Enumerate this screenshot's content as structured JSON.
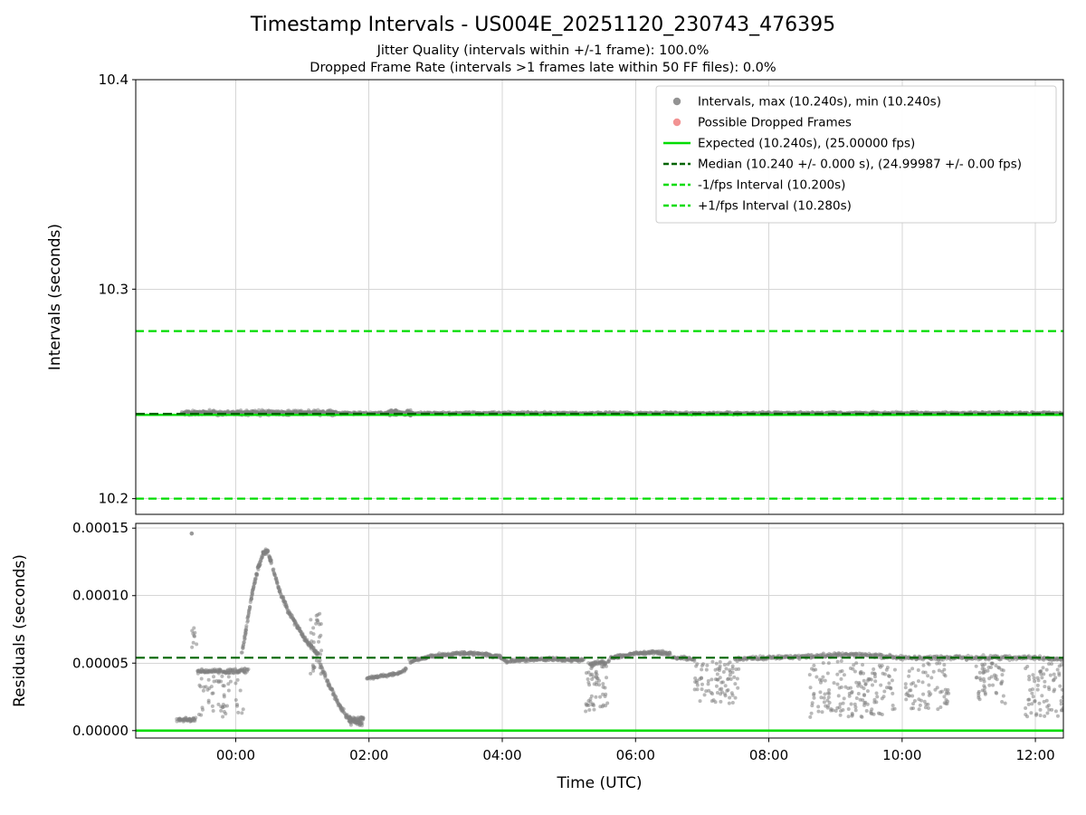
{
  "chart_data": {
    "type": "scatter",
    "title": "Timestamp Intervals - US004E_20251120_230743_476395",
    "subtitles": [
      "Jitter Quality (intervals within +/-1 frame): 100.0%",
      "Dropped Frame Rate (intervals >1 frames late within 50 FF files): 0.0%"
    ],
    "xlabel": "Time (UTC)",
    "xlim": [
      -1.5,
      12.42
    ],
    "x_ticks": [
      {
        "v": 0,
        "label": "00:00"
      },
      {
        "v": 2,
        "label": "02:00"
      },
      {
        "v": 4,
        "label": "04:00"
      },
      {
        "v": 6,
        "label": "06:00"
      },
      {
        "v": 8,
        "label": "08:00"
      },
      {
        "v": 10,
        "label": "10:00"
      },
      {
        "v": 12,
        "label": "12:00"
      }
    ],
    "colors": {
      "scatter": "#808080",
      "dropped": "#f08080",
      "bright_green": "#00dc00",
      "dark_green": "#006400",
      "grid": "#d6d6d6"
    },
    "legend": {
      "items": [
        {
          "marker": "dot",
          "color": "#808080",
          "dash": null,
          "label": "Intervals, max (10.240s), min (10.240s)"
        },
        {
          "marker": "dot",
          "color": "#f08080",
          "dash": null,
          "label": "Possible Dropped Frames"
        },
        {
          "marker": "line",
          "color": "#00dc00",
          "dash": null,
          "label": "Expected (10.240s), (25.00000 fps)"
        },
        {
          "marker": "line",
          "color": "#006400",
          "dash": [
            6,
            3
          ],
          "label": "Median (10.240 +/- 0.000 s), (24.99987 +/- 0.00 fps)"
        },
        {
          "marker": "line",
          "color": "#00dc00",
          "dash": [
            6,
            3
          ],
          "label": "-1/fps Interval (10.200s)"
        },
        {
          "marker": "line",
          "color": "#00dc00",
          "dash": [
            6,
            3
          ],
          "label": "+1/fps Interval (10.280s)"
        }
      ]
    },
    "panels": [
      {
        "name": "intervals",
        "ylabel": "Intervals (seconds)",
        "ylim": [
          10.1925,
          10.4
        ],
        "y_ticks": [
          {
            "v": 10.2,
            "label": "10.2"
          },
          {
            "v": 10.3,
            "label": "10.3"
          },
          {
            "v": 10.4,
            "label": "10.4"
          }
        ],
        "lines": [
          {
            "name": "minus-1fps-line",
            "y": 10.2,
            "color": "bright_green",
            "dash": [
              9,
              5
            ],
            "width": 2.2
          },
          {
            "name": "plus-1fps-line",
            "y": 10.28,
            "color": "bright_green",
            "dash": [
              9,
              5
            ],
            "width": 2.2
          },
          {
            "name": "expected-line",
            "y": 10.24,
            "color": "bright_green",
            "dash": null,
            "width": 2.6
          },
          {
            "name": "median-line",
            "y": 10.2405,
            "color": "dark_green",
            "dash": [
              10,
              5
            ],
            "width": 2.2
          }
        ],
        "scatter": [
          {
            "kind": "path",
            "pts": [
              [
                -0.82,
                10.2408
              ],
              [
                12.42,
                10.2408
              ]
            ],
            "jy": 0.00055,
            "n": 1500
          },
          {
            "kind": "path",
            "pts": [
              [
                -0.78,
                10.241
              ],
              [
                1.5,
                10.241
              ]
            ],
            "jy": 0.0011,
            "n": 420
          },
          {
            "kind": "cloud",
            "x0": 2.25,
            "x1": 2.65,
            "y0": 10.2396,
            "y1": 10.2424,
            "n": 60
          }
        ]
      },
      {
        "name": "residuals",
        "ylabel": "Residuals (seconds)",
        "ylim": [
          -5.5e-06,
          0.0001535
        ],
        "y_ticks": [
          {
            "v": 0,
            "label": "0.00000"
          },
          {
            "v": 5e-05,
            "label": "0.00005"
          },
          {
            "v": 0.0001,
            "label": "0.00010"
          },
          {
            "v": 0.00015,
            "label": "0.00015"
          }
        ],
        "lines": [
          {
            "name": "zero-line",
            "y": 0,
            "color": "bright_green",
            "dash": null,
            "width": 2.6
          },
          {
            "name": "median-residual-line",
            "y": 5.4e-05,
            "color": "dark_green",
            "dash": [
              10,
              5
            ],
            "width": 2.2
          }
        ],
        "scatter": [
          {
            "kind": "path",
            "pts": [
              [
                -0.88,
                8e-06
              ],
              [
                -0.6,
                8e-06
              ]
            ],
            "jy": 1.2e-06,
            "n": 45
          },
          {
            "kind": "cloud",
            "x0": -0.68,
            "x1": -0.57,
            "y0": 6e-05,
            "y1": 8.2e-05,
            "n": 9
          },
          {
            "kind": "point",
            "x": -0.66,
            "y": 0.000146
          },
          {
            "kind": "path",
            "pts": [
              [
                -0.58,
                4.4e-05
              ],
              [
                0.18,
                4.4e-05
              ]
            ],
            "jy": 1.8e-06,
            "n": 110
          },
          {
            "kind": "cloud",
            "x0": -0.55,
            "x1": 0.12,
            "y0": 1e-05,
            "y1": 4.1e-05,
            "n": 55
          },
          {
            "kind": "path",
            "pts": [
              [
                0.1,
                5.8e-05
              ],
              [
                0.18,
                8.3e-05
              ],
              [
                0.26,
                0.000105
              ],
              [
                0.34,
                0.000121
              ],
              [
                0.42,
                0.000133
              ],
              [
                0.48,
                0.000132
              ],
              [
                0.54,
                0.000124
              ]
            ],
            "jy": 2e-06,
            "n": 130
          },
          {
            "kind": "path",
            "pts": [
              [
                0.56,
                0.00012
              ],
              [
                0.66,
                0.000103
              ],
              [
                0.78,
                9e-05
              ],
              [
                0.9,
                7.9e-05
              ],
              [
                1.02,
                6.9e-05
              ],
              [
                1.14,
                6.2e-05
              ],
              [
                1.24,
                5.7e-05
              ]
            ],
            "jy": 1.8e-06,
            "n": 150
          },
          {
            "kind": "cloud",
            "x0": 1.12,
            "x1": 1.3,
            "y0": 4.2e-05,
            "y1": 8.7e-05,
            "n": 38
          },
          {
            "kind": "path",
            "pts": [
              [
                1.28,
                4.8e-05
              ],
              [
                1.4,
                3.4e-05
              ],
              [
                1.52,
                2.2e-05
              ],
              [
                1.64,
                1.2e-05
              ],
              [
                1.76,
                7e-06
              ],
              [
                1.9,
                5e-06
              ]
            ],
            "jy": 2e-06,
            "n": 120
          },
          {
            "kind": "cloud",
            "x0": 1.7,
            "x1": 1.93,
            "y0": 4e-06,
            "y1": 1e-05,
            "n": 45
          },
          {
            "kind": "path",
            "pts": [
              [
                1.97,
                3.9e-05
              ],
              [
                2.2,
                4.05e-05
              ],
              [
                2.45,
                4.25e-05
              ],
              [
                2.56,
                4.6e-05
              ]
            ],
            "jy": 1.2e-06,
            "n": 85
          },
          {
            "kind": "path",
            "pts": [
              [
                2.62,
                5.1e-05
              ],
              [
                2.9,
                5.5e-05
              ],
              [
                3.3,
                5.7e-05
              ],
              [
                3.7,
                5.7e-05
              ],
              [
                3.95,
                5.5e-05
              ],
              [
                4.08,
                5.1e-05
              ]
            ],
            "jy": 1.2e-06,
            "n": 230
          },
          {
            "kind": "path",
            "pts": [
              [
                4.12,
                5.2e-05
              ],
              [
                4.7,
                5.3e-05
              ],
              [
                5.22,
                5.2e-05
              ]
            ],
            "jy": 1.2e-06,
            "n": 160
          },
          {
            "kind": "cloud",
            "x0": 5.25,
            "x1": 5.58,
            "y0": 1.2e-05,
            "y1": 5e-05,
            "n": 60
          },
          {
            "kind": "path",
            "pts": [
              [
                5.3,
                5e-05
              ],
              [
                5.6,
                5.1e-05
              ]
            ],
            "jy": 1.5e-06,
            "n": 35
          },
          {
            "kind": "path",
            "pts": [
              [
                5.62,
                5.4e-05
              ],
              [
                6.0,
                5.7e-05
              ],
              [
                6.3,
                5.8e-05
              ],
              [
                6.52,
                5.7e-05
              ]
            ],
            "jy": 1.3e-06,
            "n": 150
          },
          {
            "kind": "path",
            "pts": [
              [
                6.55,
                5.4e-05
              ],
              [
                6.88,
                5.3e-05
              ]
            ],
            "jy": 1.3e-06,
            "n": 40
          },
          {
            "kind": "cloud",
            "x0": 6.88,
            "x1": 7.55,
            "y0": 2e-05,
            "y1": 5.2e-05,
            "n": 85
          },
          {
            "kind": "path",
            "pts": [
              [
                7.5,
                5.3e-05
              ],
              [
                8.1,
                5.4e-05
              ],
              [
                8.6,
                5.5e-05
              ],
              [
                9.0,
                5.6e-05
              ],
              [
                9.6,
                5.6e-05
              ],
              [
                9.95,
                5.4e-05
              ]
            ],
            "jy": 1.4e-06,
            "n": 260
          },
          {
            "kind": "cloud",
            "x0": 8.6,
            "x1": 9.9,
            "y0": 1e-05,
            "y1": 5.2e-05,
            "n": 160
          },
          {
            "kind": "path",
            "pts": [
              [
                9.95,
                5.4e-05
              ],
              [
                11.0,
                5.4e-05
              ],
              [
                12.0,
                5.4e-05
              ],
              [
                12.42,
                5.3e-05
              ]
            ],
            "jy": 1.5e-06,
            "n": 240
          },
          {
            "kind": "cloud",
            "x0": 10.05,
            "x1": 10.7,
            "y0": 1.5e-05,
            "y1": 5e-05,
            "n": 70
          },
          {
            "kind": "cloud",
            "x0": 11.1,
            "x1": 11.55,
            "y0": 2e-05,
            "y1": 5e-05,
            "n": 55
          },
          {
            "kind": "cloud",
            "x0": 11.85,
            "x1": 12.42,
            "y0": 1e-05,
            "y1": 5e-05,
            "n": 75
          }
        ]
      }
    ]
  }
}
